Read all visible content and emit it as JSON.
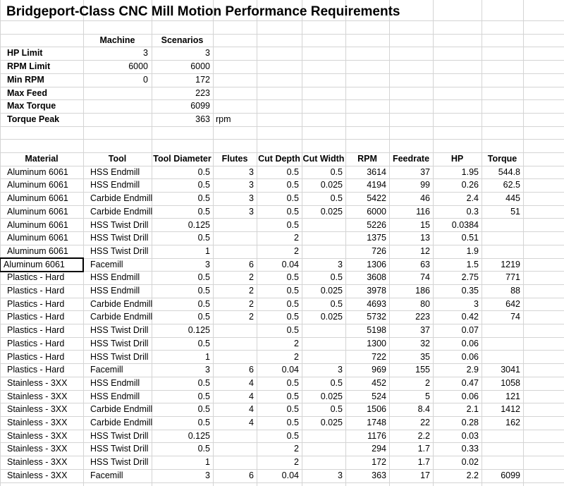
{
  "title": "Bridgeport-Class CNC Mill Motion Performance Requirements",
  "summary": {
    "headers": [
      "Machine",
      "Scenarios"
    ],
    "rows": [
      {
        "label": "HP Limit",
        "machine": "3",
        "scenarios": "3",
        "unit": ""
      },
      {
        "label": "RPM Limit",
        "machine": "6000",
        "scenarios": "6000",
        "unit": ""
      },
      {
        "label": "Min RPM",
        "machine": "0",
        "scenarios": "172",
        "unit": ""
      },
      {
        "label": "Max Feed",
        "machine": "",
        "scenarios": "223",
        "unit": ""
      },
      {
        "label": "Max Torque",
        "machine": "",
        "scenarios": "6099",
        "unit": ""
      },
      {
        "label": "Torque Peak",
        "machine": "",
        "scenarios": "363",
        "unit": "rpm"
      }
    ]
  },
  "table": {
    "headers": [
      "Material",
      "Tool",
      "Tool Diameter",
      "Flutes",
      "Cut Depth",
      "Cut Width",
      "RPM",
      "Feedrate",
      "HP",
      "Torque"
    ],
    "selected_row": 7,
    "rows": [
      [
        "Aluminum 6061",
        "HSS Endmill",
        "0.5",
        "3",
        "0.5",
        "0.5",
        "3614",
        "37",
        "1.95",
        "544.8"
      ],
      [
        "Aluminum 6061",
        "HSS Endmill",
        "0.5",
        "3",
        "0.5",
        "0.025",
        "4194",
        "99",
        "0.26",
        "62.5"
      ],
      [
        "Aluminum 6061",
        "Carbide Endmill",
        "0.5",
        "3",
        "0.5",
        "0.5",
        "5422",
        "46",
        "2.4",
        "445"
      ],
      [
        "Aluminum 6061",
        "Carbide Endmill",
        "0.5",
        "3",
        "0.5",
        "0.025",
        "6000",
        "116",
        "0.3",
        "51"
      ],
      [
        "Aluminum 6061",
        "HSS Twist Drill",
        "0.125",
        "",
        "0.5",
        "",
        "5226",
        "15",
        "0.0384",
        ""
      ],
      [
        "Aluminum 6061",
        "HSS Twist Drill",
        "0.5",
        "",
        "2",
        "",
        "1375",
        "13",
        "0.51",
        ""
      ],
      [
        "Aluminum 6061",
        "HSS Twist Drill",
        "1",
        "",
        "2",
        "",
        "726",
        "12",
        "1.9",
        ""
      ],
      [
        "Aluminum 6061",
        "Facemill",
        "3",
        "6",
        "0.04",
        "3",
        "1306",
        "63",
        "1.5",
        "1219"
      ],
      [
        "Plastics - Hard",
        "HSS Endmill",
        "0.5",
        "2",
        "0.5",
        "0.5",
        "3608",
        "74",
        "2.75",
        "771"
      ],
      [
        "Plastics - Hard",
        "HSS Endmill",
        "0.5",
        "2",
        "0.5",
        "0.025",
        "3978",
        "186",
        "0.35",
        "88"
      ],
      [
        "Plastics - Hard",
        "Carbide Endmill",
        "0.5",
        "2",
        "0.5",
        "0.5",
        "4693",
        "80",
        "3",
        "642"
      ],
      [
        "Plastics - Hard",
        "Carbide Endmill",
        "0.5",
        "2",
        "0.5",
        "0.025",
        "5732",
        "223",
        "0.42",
        "74"
      ],
      [
        "Plastics - Hard",
        "HSS Twist Drill",
        "0.125",
        "",
        "0.5",
        "",
        "5198",
        "37",
        "0.07",
        ""
      ],
      [
        "Plastics - Hard",
        "HSS Twist Drill",
        "0.5",
        "",
        "2",
        "",
        "1300",
        "32",
        "0.06",
        ""
      ],
      [
        "Plastics - Hard",
        "HSS Twist Drill",
        "1",
        "",
        "2",
        "",
        "722",
        "35",
        "0.06",
        ""
      ],
      [
        "Plastics - Hard",
        "Facemill",
        "3",
        "6",
        "0.04",
        "3",
        "969",
        "155",
        "2.9",
        "3041"
      ],
      [
        "Stainless - 3XX",
        "HSS Endmill",
        "0.5",
        "4",
        "0.5",
        "0.5",
        "452",
        "2",
        "0.47",
        "1058"
      ],
      [
        "Stainless - 3XX",
        "HSS Endmill",
        "0.5",
        "4",
        "0.5",
        "0.025",
        "524",
        "5",
        "0.06",
        "121"
      ],
      [
        "Stainless - 3XX",
        "Carbide Endmill",
        "0.5",
        "4",
        "0.5",
        "0.5",
        "1506",
        "8.4",
        "2.1",
        "1412"
      ],
      [
        "Stainless - 3XX",
        "Carbide Endmill",
        "0.5",
        "4",
        "0.5",
        "0.025",
        "1748",
        "22",
        "0.28",
        "162"
      ],
      [
        "Stainless - 3XX",
        "HSS Twist Drill",
        "0.125",
        "",
        "0.5",
        "",
        "1176",
        "2.2",
        "0.03",
        ""
      ],
      [
        "Stainless - 3XX",
        "HSS Twist Drill",
        "0.5",
        "",
        "2",
        "",
        "294",
        "1.7",
        "0.33",
        ""
      ],
      [
        "Stainless - 3XX",
        "HSS Twist Drill",
        "1",
        "",
        "2",
        "",
        "172",
        "1.7",
        "0.02",
        ""
      ],
      [
        "Stainless - 3XX",
        "Facemill",
        "3",
        "6",
        "0.04",
        "3",
        "363",
        "17",
        "2.2",
        "6099"
      ]
    ]
  },
  "colors": {
    "gridline": "#d4d4d4",
    "text": "#000000",
    "background": "#ffffff"
  }
}
